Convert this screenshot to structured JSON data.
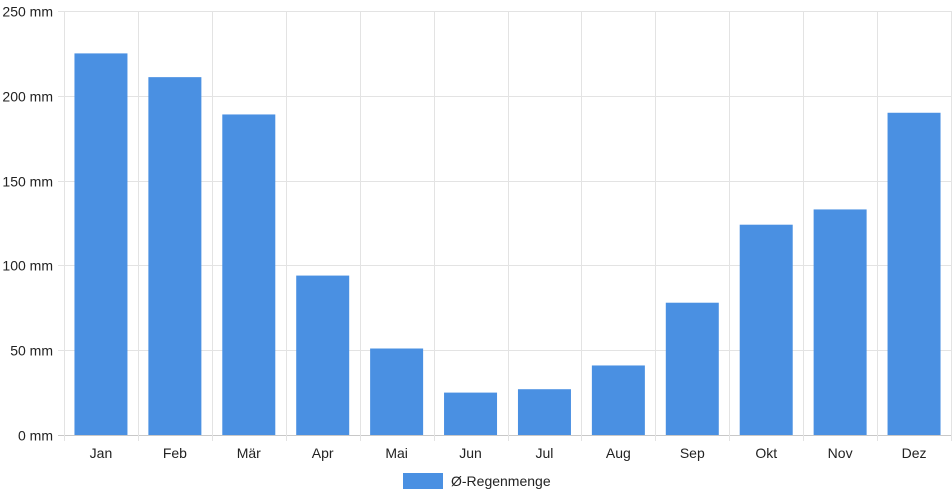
{
  "chart_data": {
    "type": "bar",
    "categories": [
      "Jan",
      "Feb",
      "Mär",
      "Apr",
      "Mai",
      "Jun",
      "Jul",
      "Aug",
      "Sep",
      "Okt",
      "Nov",
      "Dez"
    ],
    "series": [
      {
        "name": "Ø-Regenmenge",
        "values": [
          225,
          211,
          189,
          94,
          51,
          25,
          27,
          41,
          78,
          124,
          133,
          190
        ],
        "color": "#4a90e2"
      }
    ],
    "y_ticks": [
      "0 mm",
      "50 mm",
      "100 mm",
      "150 mm",
      "200 mm",
      "250 mm"
    ],
    "ylim": [
      0,
      250
    ],
    "grid": true,
    "legend_position": "bottom-center"
  }
}
